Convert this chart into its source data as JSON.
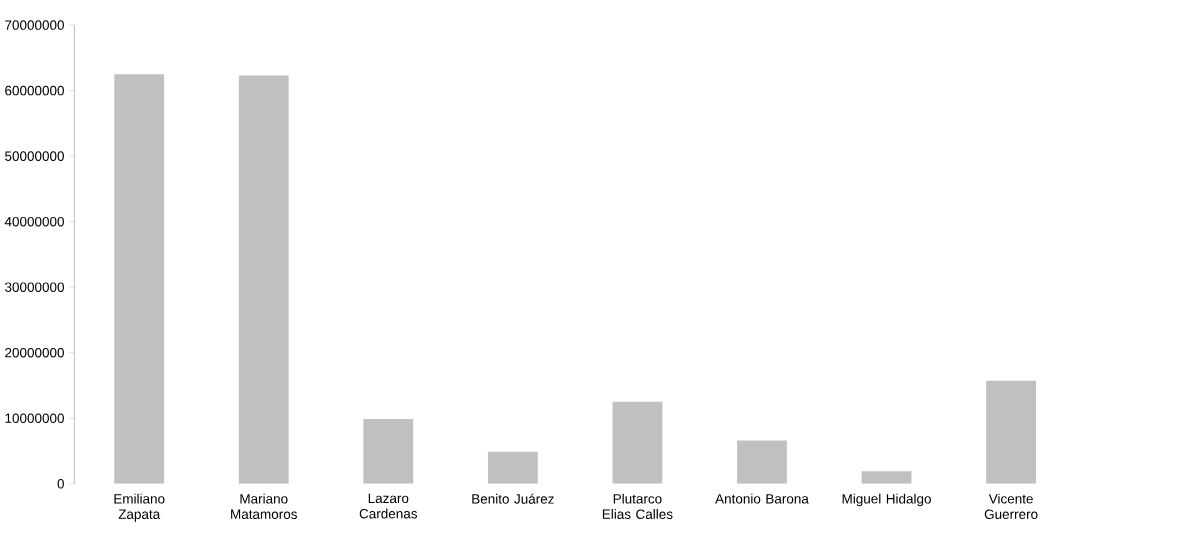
{
  "chart_data": {
    "type": "bar",
    "categories": [
      "Emiliano Zapata",
      "Mariano Matamoros",
      "Lazaro Cardenas",
      "Benito Juárez",
      "Plutarco Elias Calles",
      "Antonio Barona",
      "Miguel Hidalgo",
      "Vicente Guerrero"
    ],
    "values": [
      62500000,
      62300000,
      9900000,
      4900000,
      12500000,
      6600000,
      1900000,
      15700000
    ],
    "color": "#c0c0c0",
    "ylim": [
      0,
      70000000
    ],
    "yticks": [
      0,
      10000000,
      20000000,
      30000000,
      40000000,
      50000000,
      60000000,
      70000000
    ],
    "grid": false
  }
}
